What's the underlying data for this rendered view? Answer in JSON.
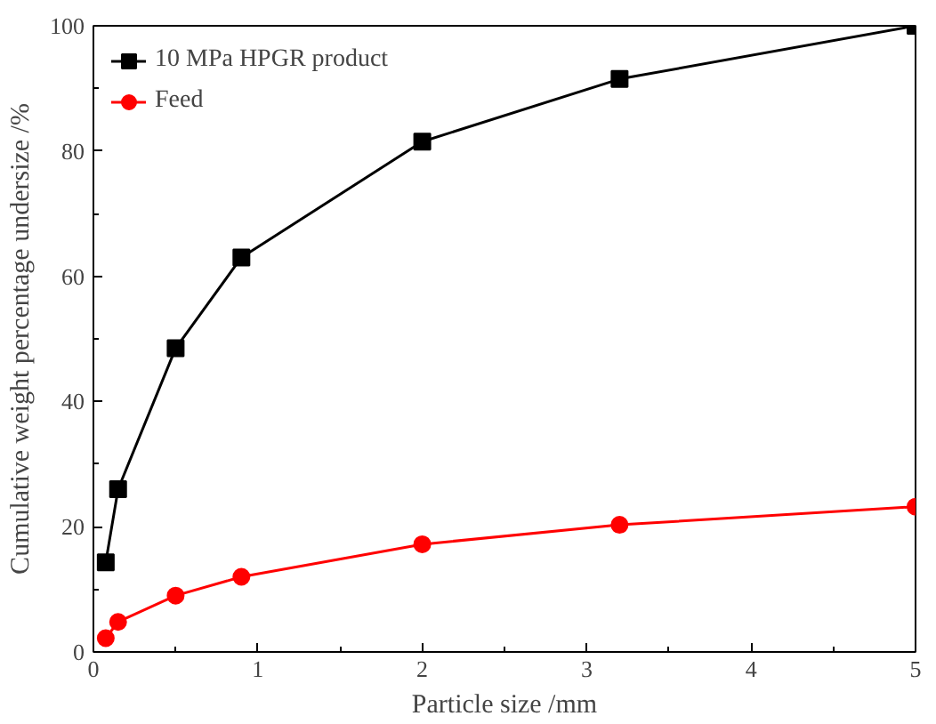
{
  "chart_data": {
    "type": "line",
    "xlabel": "Particle size /mm",
    "ylabel": "Cumulative weight percentage undersize /%",
    "xlim": [
      0,
      5
    ],
    "ylim": [
      0,
      100
    ],
    "xticks": [
      0,
      {
        "value": 0.5,
        "label": null
      },
      1,
      {
        "value": 1.5,
        "label": null
      },
      2,
      {
        "value": 2.5,
        "label": null
      },
      3,
      {
        "value": 3.5,
        "label": null
      },
      4,
      {
        "value": 4.5,
        "label": null
      },
      5
    ],
    "yticks": [
      0,
      {
        "value": 10,
        "label": null
      },
      20,
      {
        "value": 30,
        "label": null
      },
      40,
      {
        "value": 50,
        "label": null
      },
      60,
      {
        "value": 70,
        "label": null
      },
      80,
      {
        "value": 90,
        "label": null
      },
      100
    ],
    "x": [
      0.075,
      0.15,
      0.5,
      0.9,
      2,
      3.2,
      5
    ],
    "series": [
      {
        "name": "10 MPa HPGR product",
        "color": "#000000",
        "marker": "square",
        "values": [
          14.3,
          26,
          48.5,
          63,
          81.5,
          91.5,
          100
        ]
      },
      {
        "name": "Feed",
        "color": "#ff0000",
        "marker": "circle",
        "values": [
          2.2,
          4.8,
          9,
          12,
          17.2,
          20.3,
          23.2
        ]
      }
    ],
    "grid": false,
    "legend": "top left",
    "line_style": "solid"
  }
}
